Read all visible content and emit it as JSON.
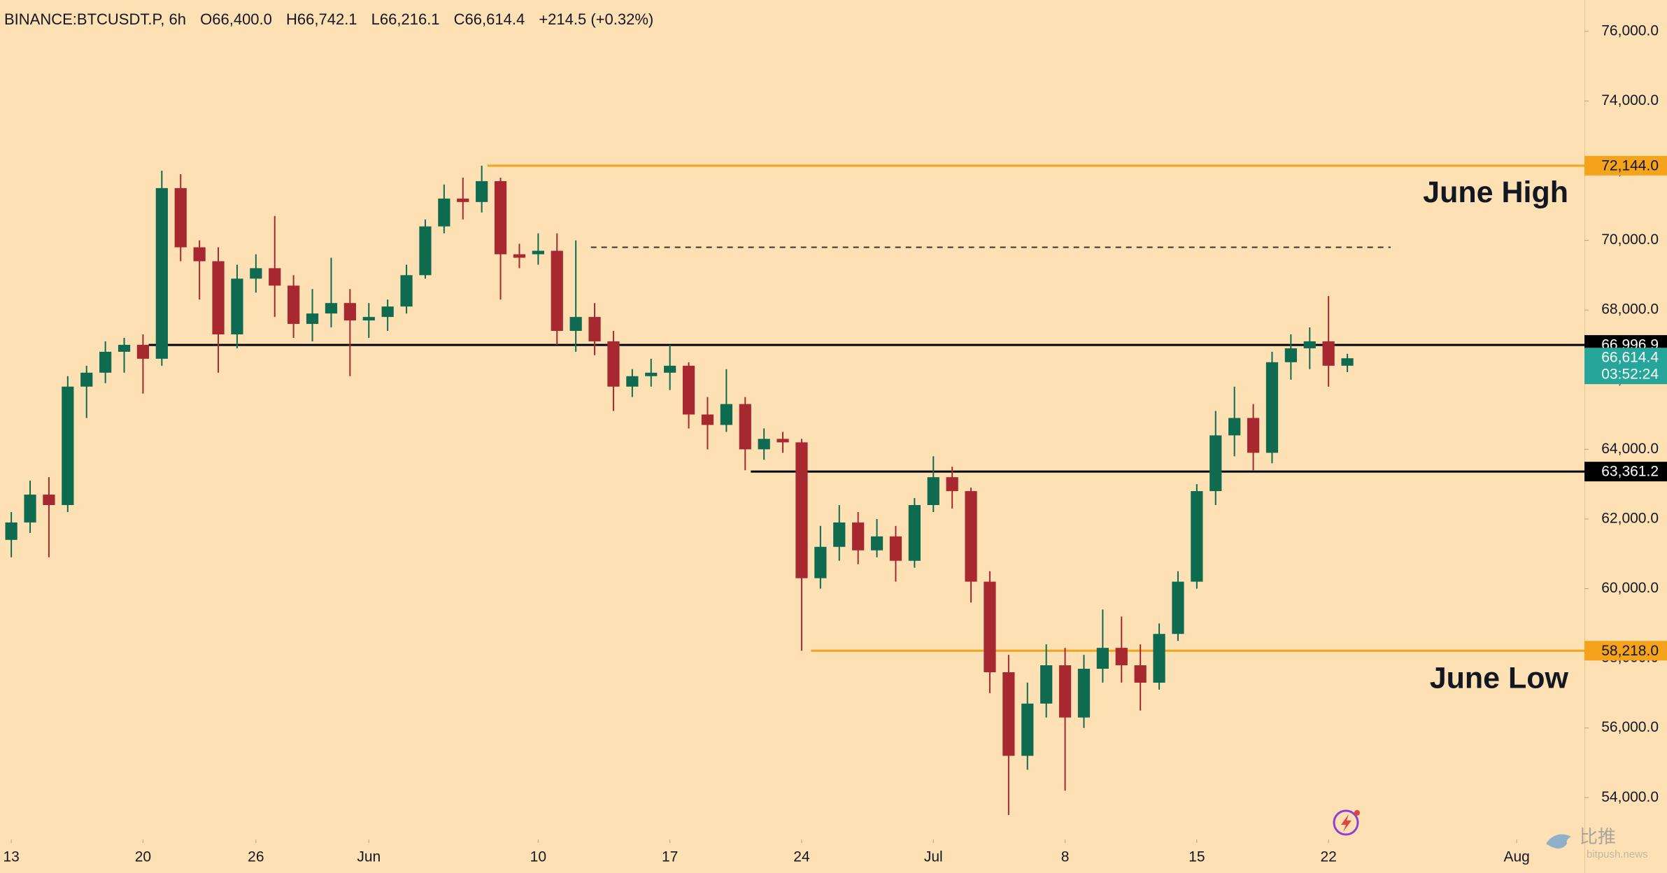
{
  "chart_data": {
    "type": "candlestick",
    "header": {
      "symbol": "BINANCE:BTCUSDT.P, 6h",
      "fields": [
        "O66,400.0",
        "H66,742.1",
        "L66,216.1",
        "C66,614.4",
        "+214.5 (+0.32%)"
      ]
    },
    "x": [
      0,
      1,
      2,
      3,
      4,
      5,
      6,
      7,
      8,
      9,
      10,
      11,
      12,
      13,
      14,
      15,
      16,
      17,
      18,
      19,
      20,
      21,
      22,
      23,
      24,
      25,
      26,
      27,
      28,
      29,
      30,
      31,
      32,
      33,
      34,
      35,
      36,
      37,
      38,
      39,
      40,
      41,
      42,
      43,
      44,
      45,
      46,
      47,
      48,
      49,
      50,
      51,
      52,
      53,
      54,
      55,
      56,
      57,
      58,
      59,
      60,
      61,
      62,
      63,
      64,
      65,
      66,
      67,
      68,
      69,
      70,
      71
    ],
    "open": [
      61400,
      61900,
      62700,
      62400,
      65800,
      66200,
      66800,
      67000,
      66600,
      71500,
      69800,
      69400,
      67300,
      68900,
      69200,
      68700,
      67600,
      67900,
      68200,
      67700,
      67800,
      68100,
      69000,
      70400,
      71200,
      71100,
      71700,
      69600,
      69600,
      69700,
      67400,
      67800,
      67100,
      65800,
      66100,
      66200,
      66400,
      65000,
      64700,
      65300,
      64000,
      64300,
      64200,
      60300,
      61200,
      61900,
      61100,
      61500,
      60800,
      62400,
      63200,
      62800,
      60200,
      57600,
      55200,
      56700,
      57800,
      56300,
      57700,
      58300,
      57800,
      57300,
      58700,
      60200,
      62800,
      64400,
      64900,
      63900,
      66500,
      66900,
      67100,
      66400
    ],
    "high": [
      62200,
      63100,
      63200,
      66100,
      66400,
      67100,
      67200,
      67300,
      72000,
      71900,
      70000,
      69800,
      69300,
      69600,
      70700,
      69000,
      68600,
      69500,
      68600,
      68200,
      68300,
      69300,
      70600,
      71600,
      71800,
      72144,
      71800,
      69900,
      70200,
      70200,
      70000,
      68200,
      67400,
      66300,
      66600,
      67000,
      66500,
      65500,
      66300,
      65500,
      64600,
      64500,
      64300,
      61800,
      62400,
      62200,
      62000,
      61800,
      62600,
      63800,
      63500,
      62900,
      60500,
      58100,
      57300,
      58400,
      58300,
      58100,
      59400,
      59200,
      58400,
      59000,
      60500,
      63000,
      65100,
      65800,
      65300,
      66800,
      67300,
      67500,
      68400,
      66742.1
    ],
    "low": [
      60900,
      61600,
      60900,
      62200,
      64900,
      65900,
      66200,
      65600,
      66400,
      69400,
      68300,
      66200,
      66900,
      68500,
      67800,
      67200,
      67100,
      67500,
      66100,
      67200,
      67400,
      67900,
      68900,
      70200,
      70600,
      70800,
      68300,
      69200,
      69300,
      67000,
      66800,
      66700,
      65100,
      65500,
      65800,
      65700,
      64600,
      64000,
      64500,
      63400,
      63700,
      63900,
      58218,
      60000,
      60800,
      60700,
      60900,
      60200,
      60600,
      62200,
      62300,
      59600,
      57000,
      53500,
      54800,
      56300,
      54200,
      56000,
      57300,
      57300,
      56500,
      57100,
      58500,
      60000,
      62400,
      63800,
      63400,
      63600,
      66000,
      66300,
      65800,
      66216.1
    ],
    "close": [
      61900,
      62700,
      62400,
      65800,
      66200,
      66800,
      67000,
      66600,
      71500,
      69800,
      69400,
      67300,
      68900,
      69200,
      68700,
      67600,
      67900,
      68200,
      67700,
      67800,
      68100,
      69000,
      70400,
      71200,
      71100,
      71700,
      69600,
      69500,
      69700,
      67400,
      67800,
      67100,
      65800,
      66100,
      66200,
      66400,
      65000,
      64700,
      65300,
      64000,
      64300,
      64200,
      60300,
      61200,
      61900,
      61100,
      61500,
      60800,
      62400,
      63200,
      62800,
      60200,
      57600,
      55200,
      56700,
      57800,
      56300,
      57700,
      58300,
      57800,
      57300,
      58700,
      60200,
      62800,
      64400,
      64900,
      63900,
      66500,
      66900,
      67100,
      66400,
      66614.4
    ],
    "up_color": "#0f6b4f",
    "down_color": "#a8282f",
    "xlim": [
      -0.6,
      83.6
    ],
    "xticks": [
      {
        "value": 0,
        "label": "13"
      },
      {
        "value": 7,
        "label": "20"
      },
      {
        "value": 13,
        "label": "26"
      },
      {
        "value": 19,
        "label": "Jun"
      },
      {
        "value": 28,
        "label": "10"
      },
      {
        "value": 35,
        "label": "17"
      },
      {
        "value": 42,
        "label": "24"
      },
      {
        "value": 49,
        "label": "Jul"
      },
      {
        "value": 56,
        "label": "8"
      },
      {
        "value": 63,
        "label": "15"
      },
      {
        "value": 70,
        "label": "22"
      },
      {
        "value": 80,
        "label": "Aug"
      }
    ],
    "ylim": [
      52800,
      76900
    ],
    "yticks": [
      {
        "value": 54000,
        "label": "54,000.0"
      },
      {
        "value": 56000,
        "label": "56,000.0"
      },
      {
        "value": 58000,
        "label": "58,000.0"
      },
      {
        "value": 60000,
        "label": "60,000.0"
      },
      {
        "value": 62000,
        "label": "62,000.0"
      },
      {
        "value": 64000,
        "label": "64,000.0"
      },
      {
        "value": 66000,
        "label": "66,000.0"
      },
      {
        "value": 68000,
        "label": "68,000.0"
      },
      {
        "value": 70000,
        "label": "70,000.0"
      },
      {
        "value": 72000,
        "label": "72,000.0"
      },
      {
        "value": 74000,
        "label": "74,000.0"
      },
      {
        "value": 76000,
        "label": "76,000.0"
      }
    ],
    "levels": [
      {
        "name": "June High",
        "value": 72144,
        "label": "72,144.0",
        "color": "#f5a31a",
        "x_start": 25.3
      },
      {
        "value": 66996.9,
        "label": "66,996.9",
        "color": "#000000",
        "x_start": 7.3
      },
      {
        "value": 63361.2,
        "label": "63,361.2",
        "color": "#000000",
        "x_start": 39.3
      },
      {
        "name": "June Low",
        "value": 58218,
        "label": "58,218.0",
        "color": "#f5a31a",
        "x_start": 42.5
      }
    ],
    "dashed_level": {
      "value": 69800,
      "x_start": 30.8,
      "x_end": 73.3,
      "color": "#333333"
    },
    "last_price": {
      "value": 66614.4,
      "label": "66,614.4",
      "countdown": "03:52:24",
      "color": "#26a69a"
    },
    "watermark": {
      "brand": "比推",
      "site": "bitpush.news"
    }
  }
}
